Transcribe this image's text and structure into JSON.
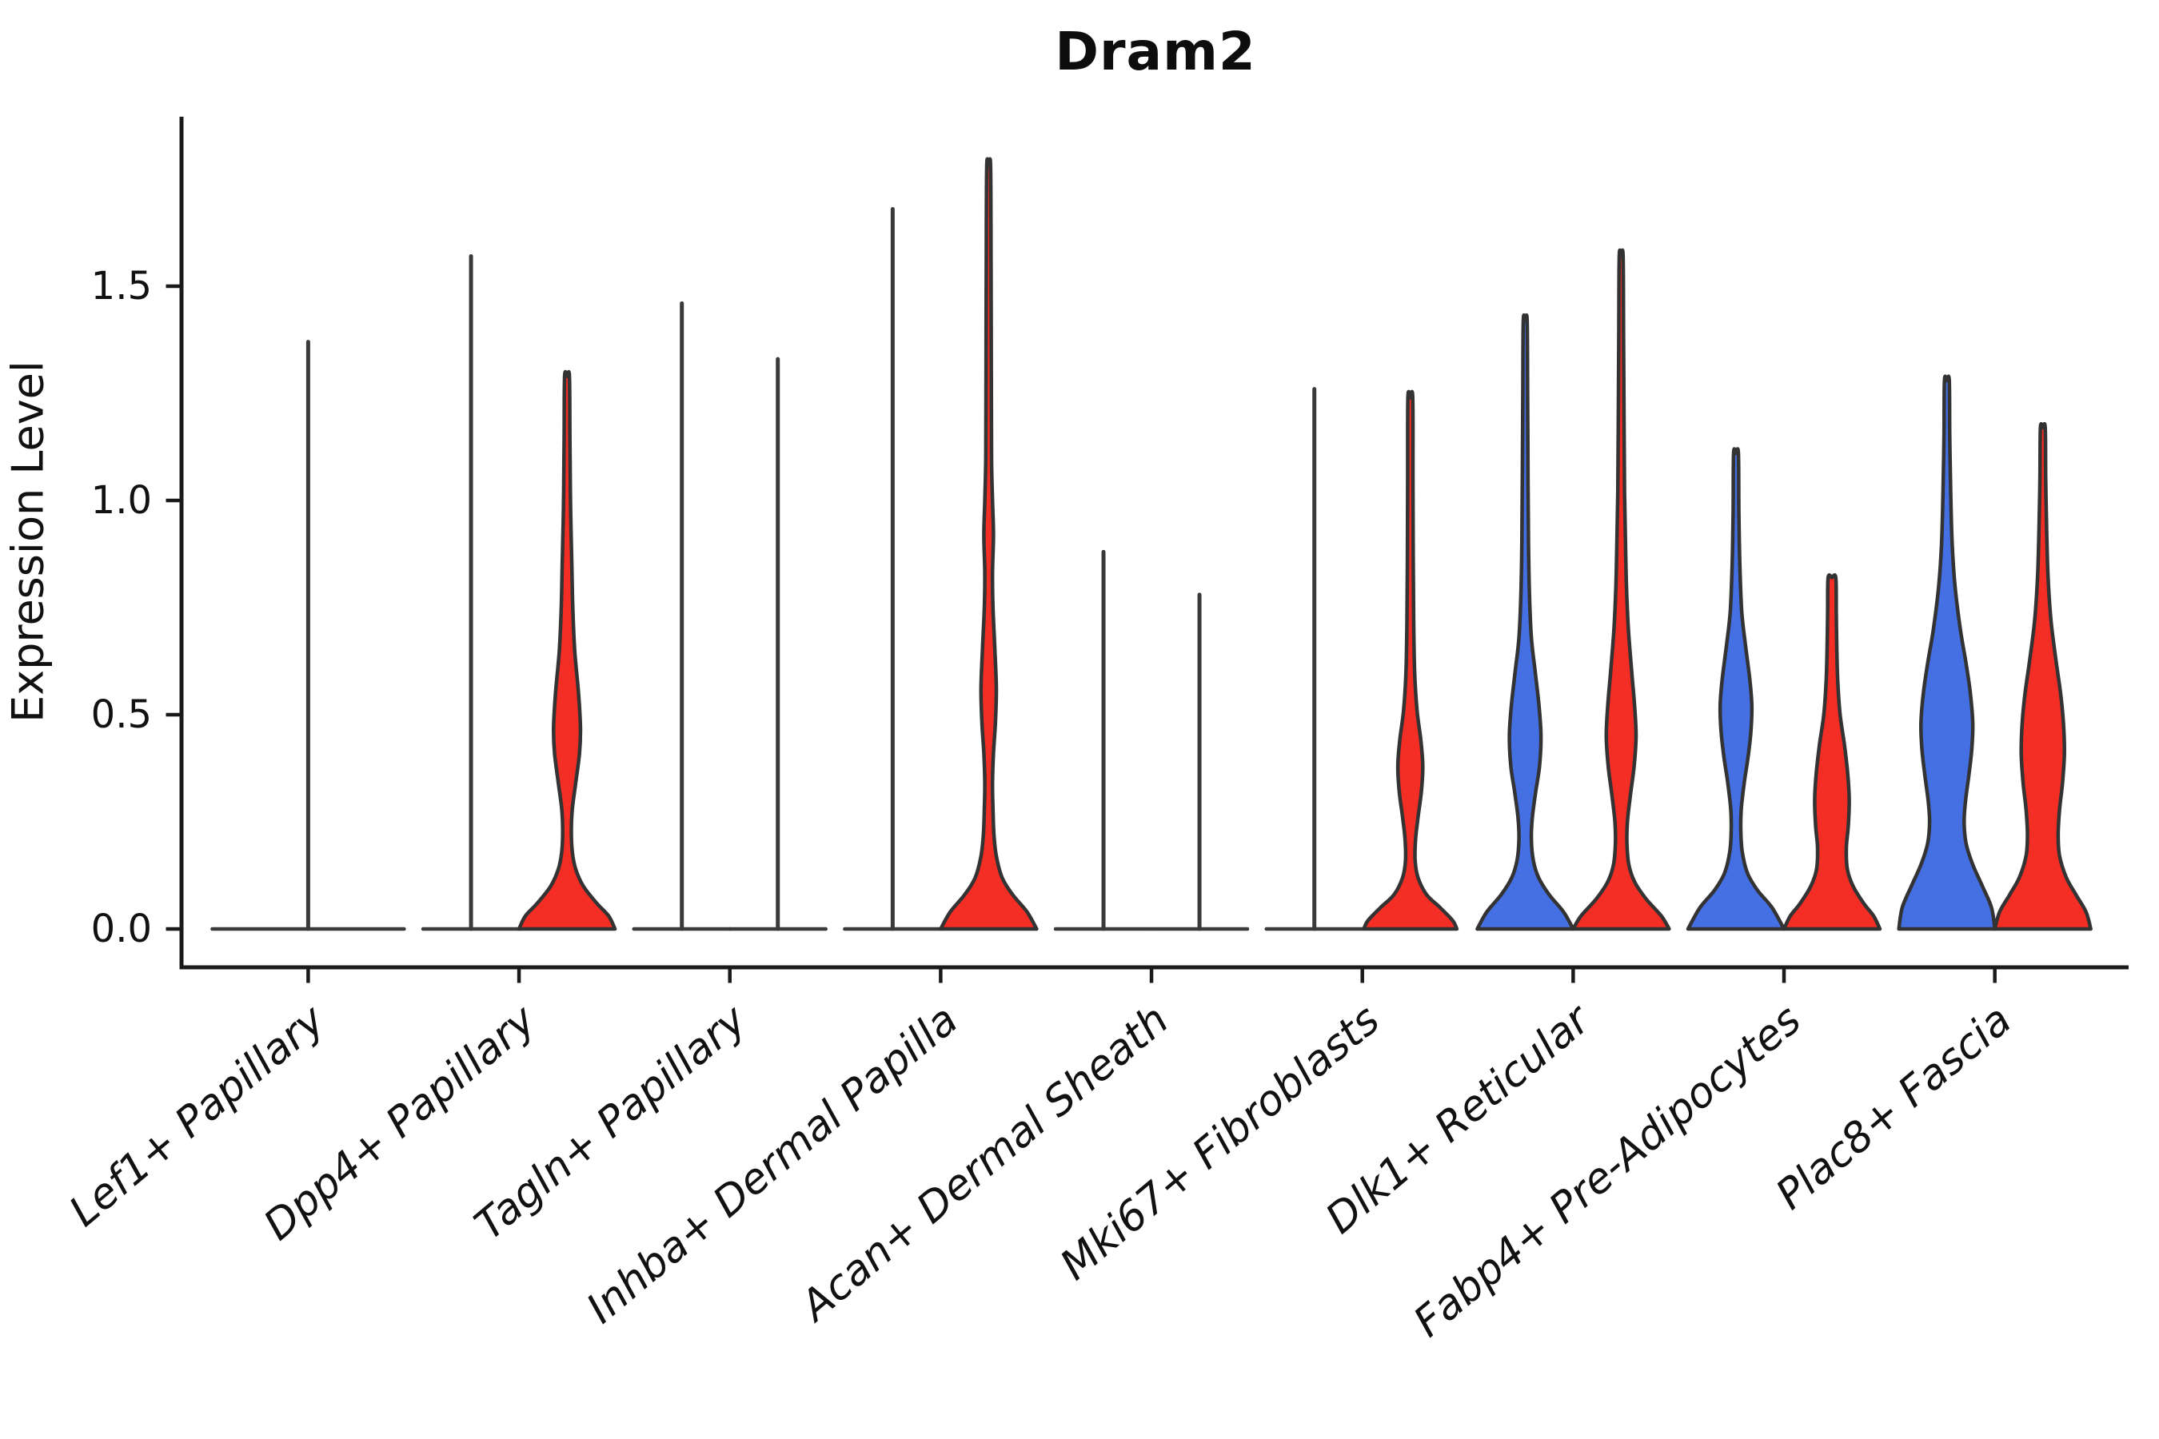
{
  "title": "Dram2",
  "y_axis": {
    "label": "Expression Level",
    "ticks": [
      "0.0",
      "0.5",
      "1.0",
      "1.5"
    ],
    "tick_values": [
      0.0,
      0.5,
      1.0,
      1.5
    ]
  },
  "chart_data": {
    "type": "violin",
    "title": "Dram2",
    "xlabel": "",
    "ylabel": "Expression Level",
    "ylim": [
      -0.09,
      1.9
    ],
    "grid": false,
    "legend": "none",
    "colors": {
      "blue": "#4470E4",
      "red": "#F42D25",
      "outline": "#333333",
      "collapsed_line": "#3a3a3a"
    },
    "categories": [
      "Lef1+ Papillary",
      "Dpp4+ Papillary",
      "Tagln+ Papillary",
      "Inhba+ Dermal Papilla",
      "Acan+ Dermal Sheath",
      "Mki67+ Fibroblasts",
      "Dlk1+ Reticular",
      "Fabp4+ Pre-Adipocytes",
      "Plac8+ Fascia"
    ],
    "violins": [
      {
        "category": "Lef1+ Papillary",
        "side": "single",
        "color": "none",
        "shape": "flat_spike",
        "width_frac": 0.91,
        "offset_frac": 0.0,
        "max_expression": 1.37,
        "profile": null
      },
      {
        "category": "Dpp4+ Papillary",
        "side": "blue",
        "color": "blue",
        "shape": "flat_spike",
        "width_frac": 0.455,
        "offset_frac": -0.2276,
        "max_expression": 1.57,
        "profile": null
      },
      {
        "category": "Dpp4+ Papillary",
        "side": "red",
        "color": "red",
        "shape": "density",
        "width_frac": 0.455,
        "offset_frac": 0.2276,
        "max_expression": 1.29,
        "profile": [
          [
            1.29,
            0.05
          ],
          [
            1.15,
            0.06
          ],
          [
            1.02,
            0.07
          ],
          [
            0.95,
            0.08
          ],
          [
            0.85,
            0.1
          ],
          [
            0.75,
            0.12
          ],
          [
            0.65,
            0.16
          ],
          [
            0.55,
            0.24
          ],
          [
            0.47,
            0.28
          ],
          [
            0.41,
            0.26
          ],
          [
            0.34,
            0.18
          ],
          [
            0.28,
            0.11
          ],
          [
            0.23,
            0.09
          ],
          [
            0.18,
            0.11
          ],
          [
            0.14,
            0.18
          ],
          [
            0.1,
            0.34
          ],
          [
            0.06,
            0.62
          ],
          [
            0.03,
            0.87
          ],
          [
            0.0,
            1.0
          ]
        ]
      },
      {
        "category": "Tagln+ Papillary",
        "side": "blue",
        "color": "blue",
        "shape": "flat_spike",
        "width_frac": 0.455,
        "offset_frac": -0.2276,
        "max_expression": 1.46,
        "profile": null
      },
      {
        "category": "Tagln+ Papillary",
        "side": "red",
        "color": "red",
        "shape": "flat_spike",
        "width_frac": 0.455,
        "offset_frac": 0.2276,
        "max_expression": 1.33,
        "profile": null
      },
      {
        "category": "Inhba+ Dermal Papilla",
        "side": "blue",
        "color": "blue",
        "shape": "flat_spike",
        "width_frac": 0.455,
        "offset_frac": -0.2276,
        "max_expression": 1.68,
        "profile": null
      },
      {
        "category": "Inhba+ Dermal Papilla",
        "side": "red",
        "color": "red",
        "shape": "density",
        "width_frac": 0.455,
        "offset_frac": 0.2276,
        "max_expression": 1.78,
        "profile": [
          [
            1.78,
            0.04
          ],
          [
            1.55,
            0.05
          ],
          [
            1.3,
            0.055
          ],
          [
            1.1,
            0.06
          ],
          [
            1.0,
            0.08
          ],
          [
            0.92,
            0.1
          ],
          [
            0.83,
            0.08
          ],
          [
            0.75,
            0.09
          ],
          [
            0.65,
            0.13
          ],
          [
            0.56,
            0.16
          ],
          [
            0.48,
            0.14
          ],
          [
            0.41,
            0.1
          ],
          [
            0.34,
            0.08
          ],
          [
            0.28,
            0.09
          ],
          [
            0.22,
            0.11
          ],
          [
            0.17,
            0.16
          ],
          [
            0.12,
            0.28
          ],
          [
            0.08,
            0.5
          ],
          [
            0.04,
            0.8
          ],
          [
            0.0,
            1.0
          ]
        ]
      },
      {
        "category": "Acan+ Dermal Sheath",
        "side": "blue",
        "color": "blue",
        "shape": "flat_spike",
        "width_frac": 0.455,
        "offset_frac": -0.2276,
        "max_expression": 0.88,
        "profile": null
      },
      {
        "category": "Acan+ Dermal Sheath",
        "side": "red",
        "color": "red",
        "shape": "flat_spike",
        "width_frac": 0.455,
        "offset_frac": 0.2276,
        "max_expression": 0.78,
        "profile": null
      },
      {
        "category": "Mki67+ Fibroblasts",
        "side": "blue",
        "color": "blue",
        "shape": "flat_spike",
        "width_frac": 0.455,
        "offset_frac": -0.2276,
        "max_expression": 1.26,
        "profile": null
      },
      {
        "category": "Mki67+ Fibroblasts",
        "side": "red",
        "color": "red",
        "shape": "density",
        "width_frac": 0.455,
        "offset_frac": 0.2276,
        "max_expression": 1.24,
        "profile": [
          [
            1.24,
            0.05
          ],
          [
            1.05,
            0.055
          ],
          [
            0.88,
            0.06
          ],
          [
            0.72,
            0.07
          ],
          [
            0.6,
            0.09
          ],
          [
            0.51,
            0.14
          ],
          [
            0.44,
            0.22
          ],
          [
            0.38,
            0.26
          ],
          [
            0.32,
            0.23
          ],
          [
            0.26,
            0.16
          ],
          [
            0.21,
            0.11
          ],
          [
            0.16,
            0.1
          ],
          [
            0.12,
            0.16
          ],
          [
            0.08,
            0.34
          ],
          [
            0.05,
            0.62
          ],
          [
            0.02,
            0.88
          ],
          [
            0.0,
            0.97
          ]
        ]
      },
      {
        "category": "Dlk1+ Reticular",
        "side": "blue",
        "color": "blue",
        "shape": "density",
        "width_frac": 0.455,
        "offset_frac": -0.2276,
        "max_expression": 1.42,
        "profile": [
          [
            1.42,
            0.04
          ],
          [
            1.25,
            0.05
          ],
          [
            1.05,
            0.06
          ],
          [
            0.9,
            0.07
          ],
          [
            0.78,
            0.09
          ],
          [
            0.68,
            0.13
          ],
          [
            0.6,
            0.21
          ],
          [
            0.52,
            0.29
          ],
          [
            0.45,
            0.33
          ],
          [
            0.38,
            0.3
          ],
          [
            0.32,
            0.22
          ],
          [
            0.26,
            0.15
          ],
          [
            0.21,
            0.13
          ],
          [
            0.16,
            0.17
          ],
          [
            0.12,
            0.28
          ],
          [
            0.08,
            0.5
          ],
          [
            0.04,
            0.8
          ],
          [
            0.0,
            1.0
          ]
        ]
      },
      {
        "category": "Dlk1+ Reticular",
        "side": "red",
        "color": "red",
        "shape": "density",
        "width_frac": 0.455,
        "offset_frac": 0.2276,
        "max_expression": 1.57,
        "profile": [
          [
            1.57,
            0.04
          ],
          [
            1.38,
            0.05
          ],
          [
            1.18,
            0.06
          ],
          [
            1.02,
            0.07
          ],
          [
            0.9,
            0.09
          ],
          [
            0.8,
            0.11
          ],
          [
            0.7,
            0.15
          ],
          [
            0.6,
            0.22
          ],
          [
            0.52,
            0.28
          ],
          [
            0.45,
            0.31
          ],
          [
            0.38,
            0.27
          ],
          [
            0.31,
            0.19
          ],
          [
            0.25,
            0.13
          ],
          [
            0.2,
            0.12
          ],
          [
            0.15,
            0.16
          ],
          [
            0.11,
            0.28
          ],
          [
            0.07,
            0.52
          ],
          [
            0.03,
            0.84
          ],
          [
            0.0,
            1.0
          ]
        ]
      },
      {
        "category": "Fabp4+ Pre-Adipocytes",
        "side": "blue",
        "color": "blue",
        "shape": "density",
        "width_frac": 0.455,
        "offset_frac": -0.2276,
        "max_expression": 1.11,
        "profile": [
          [
            1.11,
            0.05
          ],
          [
            0.97,
            0.06
          ],
          [
            0.85,
            0.08
          ],
          [
            0.74,
            0.12
          ],
          [
            0.66,
            0.2
          ],
          [
            0.58,
            0.29
          ],
          [
            0.52,
            0.33
          ],
          [
            0.46,
            0.31
          ],
          [
            0.4,
            0.25
          ],
          [
            0.34,
            0.17
          ],
          [
            0.28,
            0.11
          ],
          [
            0.23,
            0.1
          ],
          [
            0.18,
            0.13
          ],
          [
            0.13,
            0.24
          ],
          [
            0.09,
            0.45
          ],
          [
            0.05,
            0.75
          ],
          [
            0.0,
            1.0
          ]
        ]
      },
      {
        "category": "Fabp4+ Pre-Adipocytes",
        "side": "red",
        "color": "red",
        "shape": "density",
        "width_frac": 0.455,
        "offset_frac": 0.2276,
        "max_expression": 0.82,
        "profile": [
          [
            0.82,
            0.08
          ],
          [
            0.74,
            0.09
          ],
          [
            0.66,
            0.1
          ],
          [
            0.58,
            0.12
          ],
          [
            0.5,
            0.17
          ],
          [
            0.43,
            0.26
          ],
          [
            0.36,
            0.33
          ],
          [
            0.3,
            0.36
          ],
          [
            0.24,
            0.34
          ],
          [
            0.19,
            0.3
          ],
          [
            0.14,
            0.32
          ],
          [
            0.1,
            0.44
          ],
          [
            0.06,
            0.66
          ],
          [
            0.03,
            0.87
          ],
          [
            0.0,
            1.0
          ]
        ]
      },
      {
        "category": "Plac8+ Fascia",
        "side": "blue",
        "color": "blue",
        "shape": "density",
        "width_frac": 0.455,
        "offset_frac": -0.2276,
        "max_expression": 1.28,
        "profile": [
          [
            1.28,
            0.05
          ],
          [
            1.15,
            0.06
          ],
          [
            1.02,
            0.08
          ],
          [
            0.9,
            0.11
          ],
          [
            0.8,
            0.17
          ],
          [
            0.7,
            0.28
          ],
          [
            0.62,
            0.4
          ],
          [
            0.55,
            0.49
          ],
          [
            0.48,
            0.54
          ],
          [
            0.42,
            0.52
          ],
          [
            0.36,
            0.46
          ],
          [
            0.3,
            0.39
          ],
          [
            0.25,
            0.36
          ],
          [
            0.2,
            0.4
          ],
          [
            0.15,
            0.54
          ],
          [
            0.1,
            0.74
          ],
          [
            0.05,
            0.93
          ],
          [
            0.0,
            1.0
          ]
        ]
      },
      {
        "category": "Plac8+ Fascia",
        "side": "red",
        "color": "red",
        "shape": "density",
        "width_frac": 0.455,
        "offset_frac": 0.2276,
        "max_expression": 1.17,
        "profile": [
          [
            1.17,
            0.05
          ],
          [
            1.05,
            0.06
          ],
          [
            0.93,
            0.08
          ],
          [
            0.82,
            0.11
          ],
          [
            0.72,
            0.17
          ],
          [
            0.63,
            0.27
          ],
          [
            0.55,
            0.37
          ],
          [
            0.48,
            0.43
          ],
          [
            0.41,
            0.45
          ],
          [
            0.34,
            0.41
          ],
          [
            0.28,
            0.35
          ],
          [
            0.22,
            0.32
          ],
          [
            0.17,
            0.35
          ],
          [
            0.12,
            0.49
          ],
          [
            0.08,
            0.69
          ],
          [
            0.04,
            0.9
          ],
          [
            0.0,
            1.0
          ]
        ]
      }
    ]
  }
}
